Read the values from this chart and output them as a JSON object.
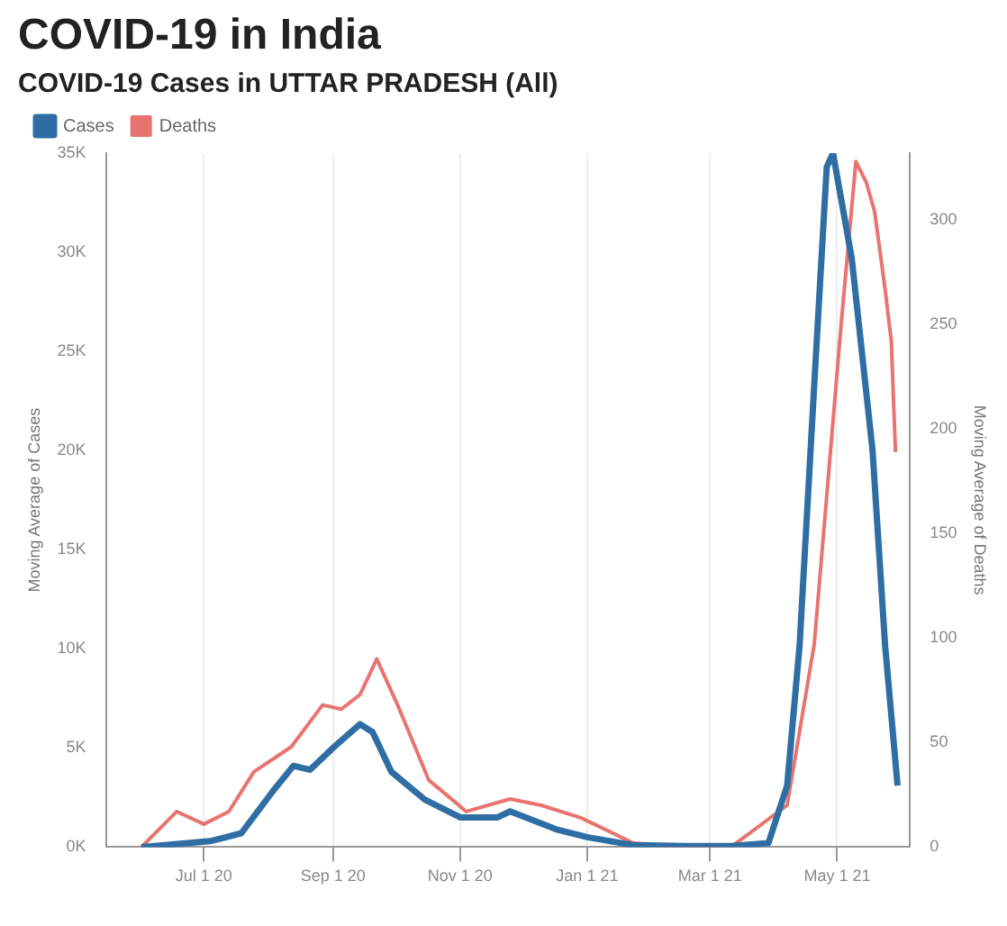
{
  "chart_data": {
    "type": "line",
    "title": "COVID-19 in India",
    "subtitle": "COVID-19 Cases in UTTAR PRADESH (All)",
    "ylabel": "Moving Average of Cases",
    "y2label": "Moving Average of Deaths",
    "xlim": [
      "2020-05-15",
      "2021-06-05"
    ],
    "xticks": [
      {
        "value": "2020-07-01",
        "label": "Jul 1 20"
      },
      {
        "value": "2020-09-01",
        "label": "Sep 1 20"
      },
      {
        "value": "2020-11-01",
        "label": "Nov 1 20"
      },
      {
        "value": "2021-01-01",
        "label": "Jan 1 21"
      },
      {
        "value": "2021-03-01",
        "label": "Mar 1 21"
      },
      {
        "value": "2021-05-01",
        "label": "May 1 21"
      }
    ],
    "ylim": [
      0,
      35000
    ],
    "yticks": [
      {
        "value": 0,
        "label": "0K"
      },
      {
        "value": 5000,
        "label": "5K"
      },
      {
        "value": 10000,
        "label": "10K"
      },
      {
        "value": 15000,
        "label": "15K"
      },
      {
        "value": 20000,
        "label": "20K"
      },
      {
        "value": 25000,
        "label": "25K"
      },
      {
        "value": 30000,
        "label": "30K"
      },
      {
        "value": 35000,
        "label": "35K"
      }
    ],
    "y2lim": [
      0,
      332
    ],
    "y2ticks": [
      0,
      50,
      100,
      150,
      200,
      250,
      300
    ],
    "grid": "x",
    "legend": "top left",
    "marker": "none",
    "line_style": "solid",
    "series": [
      {
        "name": "Cases",
        "color": "#2f6ea5",
        "x": [
          "2020-06-01",
          "2020-07-04",
          "2020-07-19",
          "2020-08-03",
          "2020-08-13",
          "2020-08-21",
          "2020-09-02",
          "2020-09-14",
          "2020-09-20",
          "2020-09-29",
          "2020-10-15",
          "2020-11-01",
          "2020-11-19",
          "2020-11-25",
          "2020-12-17",
          "2021-01-01",
          "2021-01-23",
          "2021-02-20",
          "2021-03-11",
          "2021-03-29",
          "2021-04-07",
          "2021-04-13",
          "2021-04-20",
          "2021-04-26",
          "2021-04-29",
          "2021-05-08",
          "2021-05-18",
          "2021-05-24",
          "2021-05-30"
        ],
        "values": [
          0,
          300,
          700,
          2800,
          4100,
          3900,
          5100,
          6200,
          5800,
          3800,
          2400,
          1500,
          1500,
          1800,
          900,
          500,
          100,
          50,
          50,
          200,
          3100,
          10200,
          23300,
          34300,
          35000,
          29700,
          20000,
          10200,
          3100
        ]
      },
      {
        "name": "Deaths",
        "color": "#e8736f",
        "axis": "y2",
        "x": [
          "2020-06-01",
          "2020-06-18",
          "2020-07-01",
          "2020-07-13",
          "2020-07-25",
          "2020-08-12",
          "2020-08-27",
          "2020-09-05",
          "2020-09-14",
          "2020-09-22",
          "2020-10-02",
          "2020-10-17",
          "2020-11-04",
          "2020-11-25",
          "2020-12-10",
          "2020-12-29",
          "2021-01-23",
          "2021-02-16",
          "2021-03-11",
          "2021-04-07",
          "2021-04-20",
          "2021-05-03",
          "2021-05-10",
          "2021-05-15",
          "2021-05-19",
          "2021-05-24",
          "2021-05-27",
          "2021-05-29"
        ],
        "values": [
          0,
          17,
          11,
          17,
          36,
          48,
          68,
          66,
          73,
          90,
          68,
          32,
          17,
          23,
          20,
          14,
          2,
          0,
          0,
          20,
          97,
          251,
          328,
          318,
          304,
          267,
          242,
          189
        ]
      }
    ]
  }
}
